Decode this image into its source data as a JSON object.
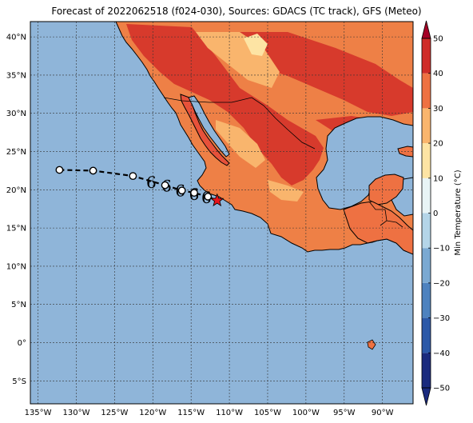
{
  "title": "Forecast of 2022062518 (f024-030), Sources: GDACS (TC track), GFS (Meteo)",
  "map": {
    "lon_range": [
      -136,
      -86
    ],
    "lat_range": [
      -8,
      42
    ],
    "lon_ticks": [
      {
        "v": -135,
        "label": "135°W"
      },
      {
        "v": -130,
        "label": "130°W"
      },
      {
        "v": -125,
        "label": "125°W"
      },
      {
        "v": -120,
        "label": "120°W"
      },
      {
        "v": -115,
        "label": "115°W"
      },
      {
        "v": -110,
        "label": "110°W"
      },
      {
        "v": -105,
        "label": "105°W"
      },
      {
        "v": -100,
        "label": "100°W"
      },
      {
        "v": -95,
        "label": "95°W"
      },
      {
        "v": -90,
        "label": "90°W"
      }
    ],
    "lat_ticks": [
      {
        "v": 40,
        "label": "40°N"
      },
      {
        "v": 35,
        "label": "35°N"
      },
      {
        "v": 30,
        "label": "30°N"
      },
      {
        "v": 25,
        "label": "25°N"
      },
      {
        "v": 20,
        "label": "20°N"
      },
      {
        "v": 15,
        "label": "15°N"
      },
      {
        "v": 10,
        "label": "10°N"
      },
      {
        "v": 5,
        "label": "5°N"
      },
      {
        "v": 0,
        "label": "0°"
      },
      {
        "v": -5,
        "label": "5°S"
      }
    ],
    "ocean_color": "#8fb5d9",
    "grid": true,
    "projection": "equirectangular"
  },
  "colorbar": {
    "label": "Min Temperature (°C)",
    "min": -50,
    "max": 50,
    "step": 10,
    "ticks": [
      {
        "v": 50,
        "label": "50"
      },
      {
        "v": 40,
        "label": "40"
      },
      {
        "v": 30,
        "label": "30"
      },
      {
        "v": 20,
        "label": "20"
      },
      {
        "v": 10,
        "label": "10"
      },
      {
        "v": 0,
        "label": "0"
      },
      {
        "v": -10,
        "label": "−10"
      },
      {
        "v": -20,
        "label": "−20"
      },
      {
        "v": -30,
        "label": "−30"
      },
      {
        "v": -40,
        "label": "−40"
      },
      {
        "v": -50,
        "label": "−50"
      }
    ],
    "colors": [
      "#1a2a7e",
      "#2b58a8",
      "#4d82bf",
      "#7aa9d2",
      "#b4d5e8",
      "#e8f4f6",
      "#fde4a4",
      "#f9b56d",
      "#ee7142",
      "#cf2c28",
      "#a50026"
    ],
    "extend": "both"
  },
  "track": {
    "past": [
      {
        "lon": -132.2,
        "lat": 22.6
      },
      {
        "lon": -127.8,
        "lat": 22.5
      },
      {
        "lon": -122.6,
        "lat": 21.8
      }
    ],
    "forecast": [
      {
        "lon": -118.4,
        "lat": 20.6
      },
      {
        "lon": -116.2,
        "lat": 19.9
      },
      {
        "lon": -114.6,
        "lat": 19.6
      },
      {
        "lon": -112.8,
        "lat": 19.1
      }
    ],
    "current": {
      "lon": -111.6,
      "lat": 18.6
    },
    "storm_symbols": [
      {
        "lon": -120.2,
        "lat": 21.2
      },
      {
        "lon": -118.2,
        "lat": 20.7
      },
      {
        "lon": -116.4,
        "lat": 20.1
      },
      {
        "lon": -114.6,
        "lat": 19.6
      },
      {
        "lon": -113.0,
        "lat": 19.2
      }
    ],
    "current_color": "#e8141b"
  }
}
